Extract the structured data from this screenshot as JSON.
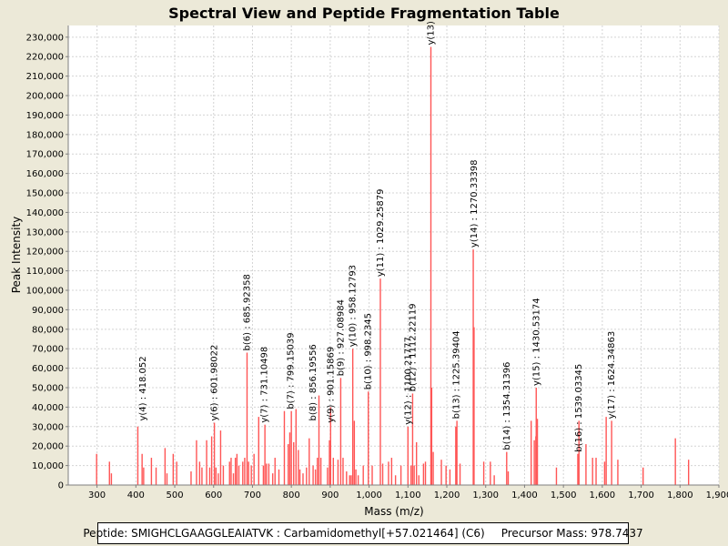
{
  "footer": {
    "peptide": "Peptide: SMIGHCLGAAGGLEAIATVK : Carbamidomethyl[+57.021464] (C6)",
    "precursor": "Precursor Mass: 978.7437"
  },
  "chart_data": {
    "type": "bar",
    "title": "Spectral View and Peptide Fragmentation Table",
    "xlabel": "Mass (m/z)",
    "ylabel": "Peak Intensity",
    "xlim": [
      226,
      1900
    ],
    "ylim": [
      0,
      236000
    ],
    "xticks": [
      300,
      400,
      500,
      600,
      700,
      800,
      900,
      1000,
      1100,
      1200,
      1300,
      1400,
      1500,
      1600,
      1700,
      1800,
      1900
    ],
    "xtick_labels": [
      "300",
      "400",
      "500",
      "600",
      "700",
      "800",
      "900",
      "1,000",
      "1,100",
      "1,200",
      "1,300",
      "1,400",
      "1,500",
      "1,600",
      "1,700",
      "1,800",
      "1,900"
    ],
    "yticks": [
      0,
      10000,
      20000,
      30000,
      40000,
      50000,
      60000,
      70000,
      80000,
      90000,
      100000,
      110000,
      120000,
      130000,
      140000,
      150000,
      160000,
      170000,
      180000,
      190000,
      200000,
      210000,
      220000,
      230000
    ],
    "ytick_labels": [
      "0",
      "10,000",
      "20,000",
      "30,000",
      "40,000",
      "50,000",
      "60,000",
      "70,000",
      "80,000",
      "90,000",
      "100,000",
      "110,000",
      "120,000",
      "130,000",
      "140,000",
      "150,000",
      "160,000",
      "170,000",
      "180,000",
      "190,000",
      "200,000",
      "210,000",
      "220,000",
      "230,000"
    ],
    "grid": true,
    "bar_color": "#ff5555",
    "peaks": [
      [
        299,
        16000
      ],
      [
        332,
        12000
      ],
      [
        337,
        6000
      ],
      [
        405,
        30000
      ],
      [
        416,
        16000
      ],
      [
        420,
        9000
      ],
      [
        440,
        14000
      ],
      [
        452,
        9000
      ],
      [
        475,
        19000
      ],
      [
        480,
        6000
      ],
      [
        496,
        16000
      ],
      [
        505,
        12000
      ],
      [
        542,
        7000
      ],
      [
        556,
        23000
      ],
      [
        564,
        12000
      ],
      [
        570,
        9000
      ],
      [
        582,
        23000
      ],
      [
        590,
        9000
      ],
      [
        595,
        25000
      ],
      [
        602,
        32000
      ],
      [
        606,
        9000
      ],
      [
        612,
        6000
      ],
      [
        618,
        28000
      ],
      [
        625,
        10000
      ],
      [
        641,
        12000
      ],
      [
        645,
        14000
      ],
      [
        651,
        6000
      ],
      [
        656,
        14000
      ],
      [
        660,
        16000
      ],
      [
        665,
        10000
      ],
      [
        675,
        12000
      ],
      [
        680,
        14000
      ],
      [
        686,
        68000
      ],
      [
        690,
        12000
      ],
      [
        697,
        10000
      ],
      [
        704,
        16000
      ],
      [
        716,
        35000
      ],
      [
        728,
        10000
      ],
      [
        732,
        31000
      ],
      [
        736,
        11000
      ],
      [
        742,
        11000
      ],
      [
        752,
        6000
      ],
      [
        758,
        14000
      ],
      [
        768,
        8000
      ],
      [
        782,
        38000
      ],
      [
        792,
        21000
      ],
      [
        796,
        27000
      ],
      [
        800,
        38000
      ],
      [
        806,
        22000
      ],
      [
        812,
        39000
      ],
      [
        818,
        18000
      ],
      [
        822,
        8000
      ],
      [
        830,
        6000
      ],
      [
        839,
        9000
      ],
      [
        846,
        24000
      ],
      [
        856,
        10000
      ],
      [
        862,
        8000
      ],
      [
        867,
        14000
      ],
      [
        871,
        46000
      ],
      [
        876,
        14000
      ],
      [
        893,
        9000
      ],
      [
        898,
        23000
      ],
      [
        901,
        40000
      ],
      [
        908,
        14000
      ],
      [
        920,
        13000
      ],
      [
        927,
        55000
      ],
      [
        933,
        14000
      ],
      [
        942,
        7000
      ],
      [
        950,
        5000
      ],
      [
        954,
        5000
      ],
      [
        958,
        70000
      ],
      [
        962,
        33000
      ],
      [
        966,
        8000
      ],
      [
        972,
        5000
      ],
      [
        985,
        10000
      ],
      [
        998,
        48000
      ],
      [
        1008,
        10000
      ],
      [
        1029,
        106000
      ],
      [
        1035,
        11000
      ],
      [
        1050,
        12000
      ],
      [
        1058,
        14000
      ],
      [
        1068,
        5000
      ],
      [
        1082,
        10000
      ],
      [
        1100,
        30000
      ],
      [
        1108,
        10000
      ],
      [
        1112,
        47000
      ],
      [
        1116,
        10000
      ],
      [
        1122,
        22000
      ],
      [
        1128,
        5000
      ],
      [
        1140,
        11000
      ],
      [
        1145,
        12000
      ],
      [
        1159,
        225000
      ],
      [
        1161,
        50000
      ],
      [
        1165,
        17000
      ],
      [
        1186,
        13000
      ],
      [
        1198,
        10000
      ],
      [
        1208,
        8000
      ],
      [
        1223,
        30000
      ],
      [
        1226,
        33000
      ],
      [
        1234,
        11000
      ],
      [
        1268,
        121000
      ],
      [
        1270,
        81000
      ],
      [
        1295,
        12000
      ],
      [
        1312,
        12000
      ],
      [
        1322,
        5000
      ],
      [
        1354,
        17000
      ],
      [
        1358,
        7000
      ],
      [
        1417,
        33000
      ],
      [
        1425,
        23000
      ],
      [
        1429,
        25000
      ],
      [
        1430,
        50000
      ],
      [
        1433,
        34000
      ],
      [
        1482,
        9000
      ],
      [
        1537,
        16000
      ],
      [
        1540,
        33000
      ],
      [
        1558,
        21000
      ],
      [
        1575,
        14000
      ],
      [
        1584,
        14000
      ],
      [
        1606,
        12000
      ],
      [
        1610,
        35000
      ],
      [
        1624,
        33000
      ],
      [
        1640,
        13000
      ],
      [
        1705,
        9000
      ],
      [
        1788,
        24000
      ],
      [
        1822,
        13000
      ]
    ],
    "annotations": [
      {
        "x": 418,
        "y": 32000,
        "text": "y(4) : 418.052"
      },
      {
        "x": 602,
        "y": 32000,
        "text": "y(6) : 601.98022"
      },
      {
        "x": 686,
        "y": 68000,
        "text": "b(6) : 685.92358"
      },
      {
        "x": 731,
        "y": 31000,
        "text": "y(7) : 731.10498"
      },
      {
        "x": 799,
        "y": 38000,
        "text": "b(7) : 799.15039"
      },
      {
        "x": 856,
        "y": 32000,
        "text": "b(8) : 856.19556"
      },
      {
        "x": 901,
        "y": 31000,
        "text": "y(9) : 901.15869"
      },
      {
        "x": 927,
        "y": 55000,
        "text": "b(9) : 927.08984"
      },
      {
        "x": 958,
        "y": 70000,
        "text": "y(10) : 958.12793"
      },
      {
        "x": 998,
        "y": 48000,
        "text": "b(10) : 998.2345"
      },
      {
        "x": 1029,
        "y": 106000,
        "text": "y(11) : 1029.25879"
      },
      {
        "x": 1100,
        "y": 30000,
        "text": "y(12) : 1100.21777"
      },
      {
        "x": 1112,
        "y": 47000,
        "text": "b(12) : 1112.22119"
      },
      {
        "x": 1159,
        "y": 225000,
        "text": "y(13)"
      },
      {
        "x": 1225,
        "y": 33000,
        "text": "b(13) : 1225.39404"
      },
      {
        "x": 1270,
        "y": 121000,
        "text": "y(14) : 1270.33398"
      },
      {
        "x": 1354,
        "y": 17000,
        "text": "b(14) : 1354.31396"
      },
      {
        "x": 1430,
        "y": 50000,
        "text": "y(15) : 1430.53174"
      },
      {
        "x": 1539,
        "y": 16000,
        "text": "b(16) : 1539.03345"
      },
      {
        "x": 1624,
        "y": 33000,
        "text": "y(17) : 1624.34863"
      }
    ]
  }
}
